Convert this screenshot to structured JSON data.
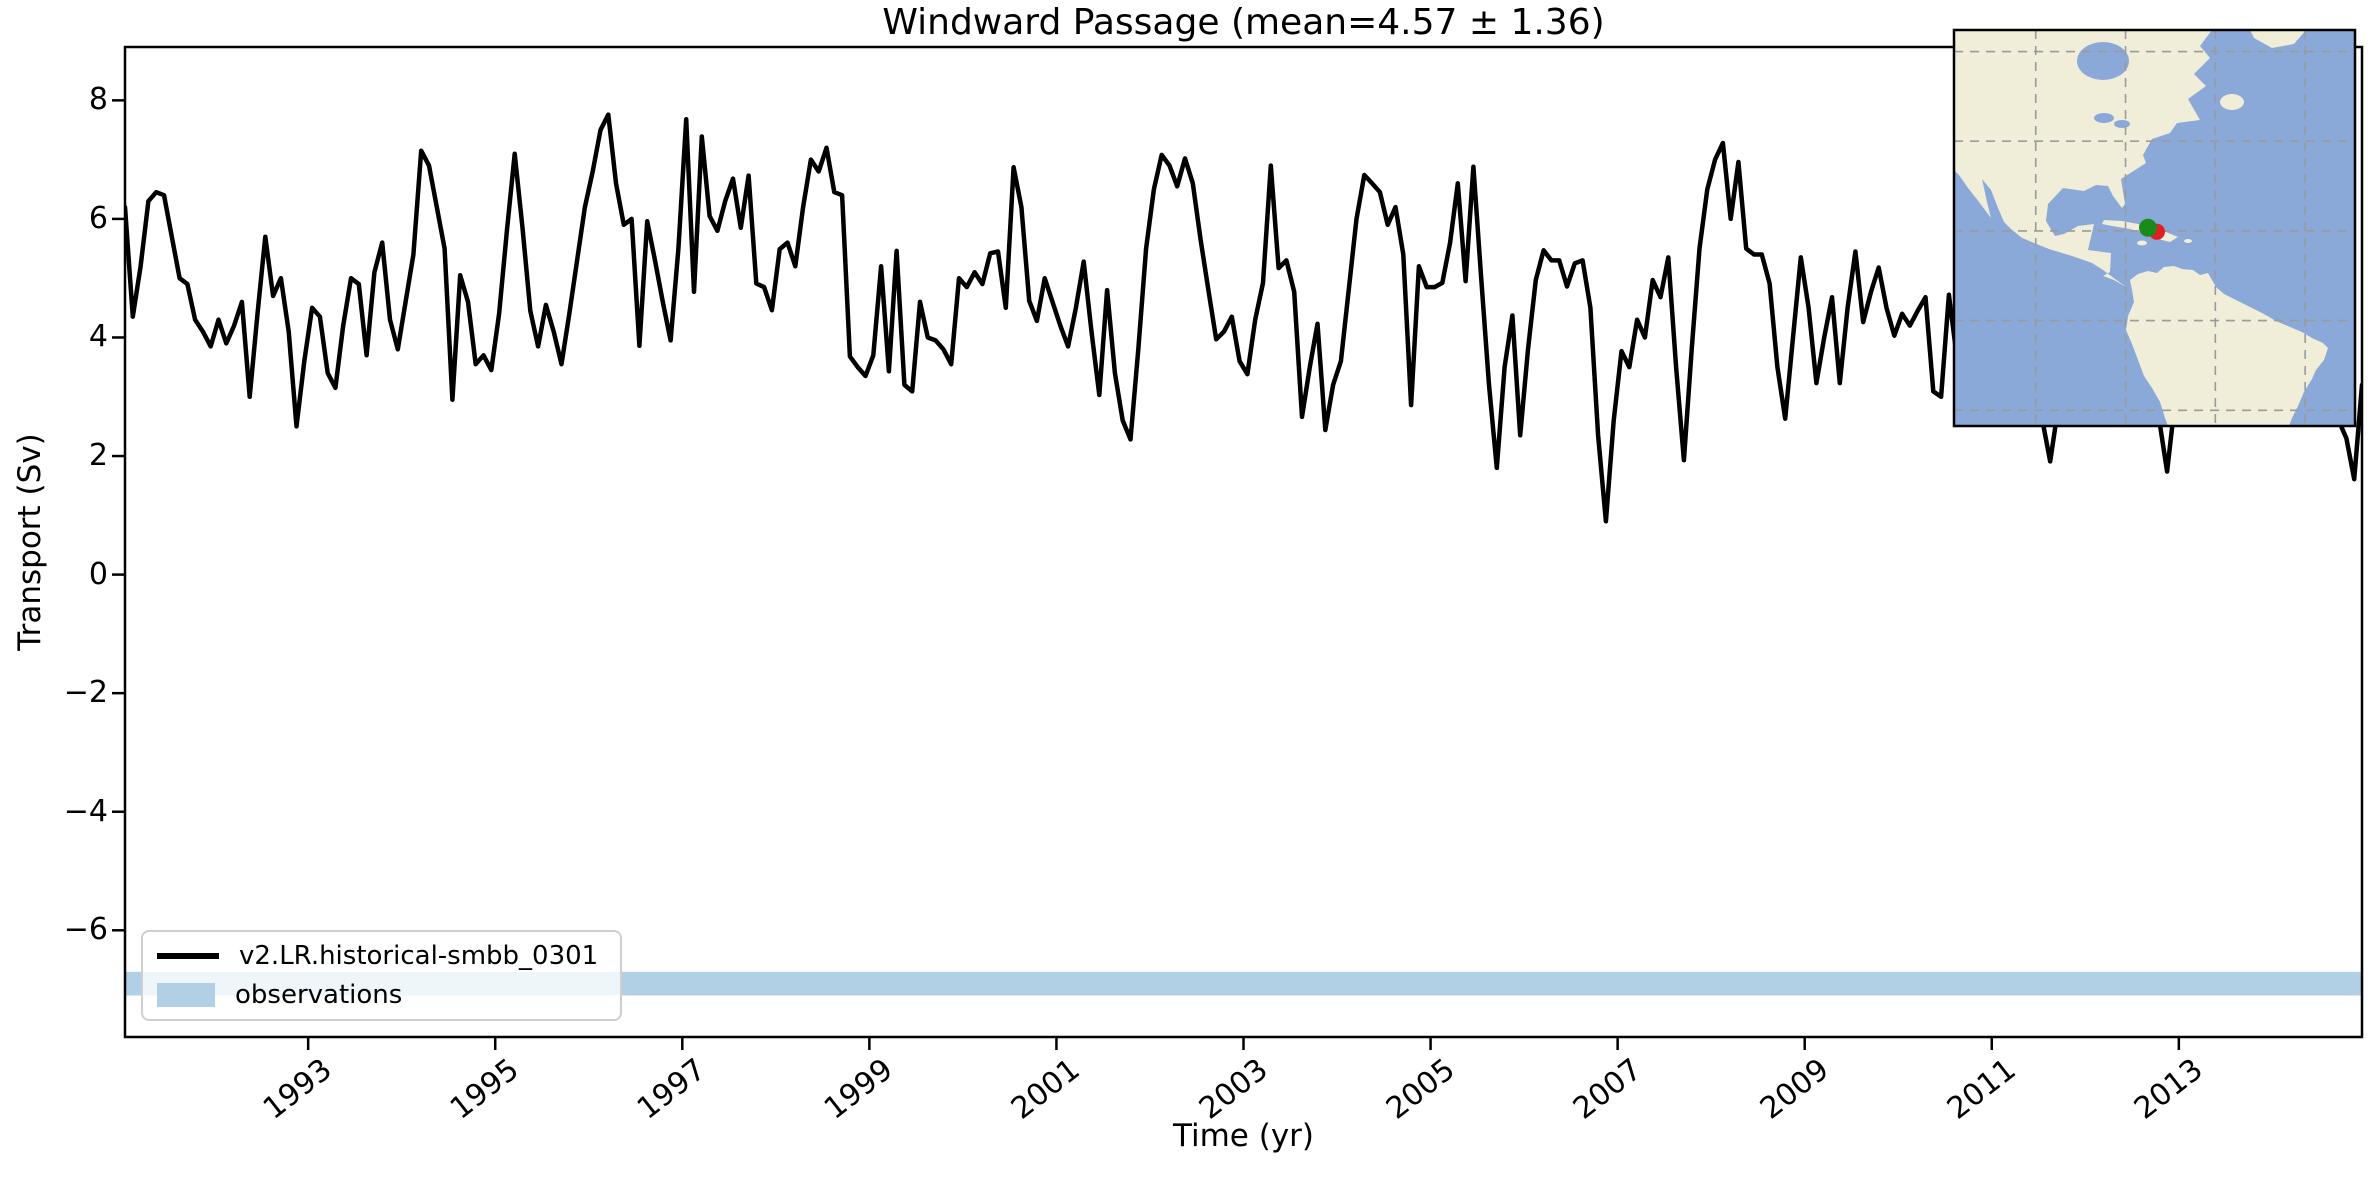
{
  "title": "Windward Passage (mean=4.57 ± 1.36)",
  "axes": {
    "xlabel": "Time (yr)",
    "ylabel": "Transport (Sv)",
    "xticks": [
      1993,
      1995,
      1997,
      1999,
      2001,
      2003,
      2005,
      2007,
      2009,
      2011,
      2013
    ],
    "yticks": [
      8,
      6,
      4,
      2,
      0,
      -2,
      -4,
      -6
    ],
    "ytick_labels": [
      "8",
      "6",
      "4",
      "2",
      "0",
      "−2",
      "−4",
      "−6"
    ]
  },
  "legend": {
    "entries": [
      {
        "label": "v2.LR.historical-smbb_0301",
        "type": "line",
        "color": "#000000"
      },
      {
        "label": "observations",
        "type": "patch",
        "color": "#b1cfe5"
      }
    ]
  },
  "observations_band": {
    "center_sv": -6.9,
    "half_width_sv": 0.2,
    "color": "#b1cfe5"
  },
  "chart_data": {
    "type": "line",
    "title": "Windward Passage (mean=4.57 ± 1.36)",
    "xlabel": "Time (yr)",
    "ylabel": "Transport (Sv)",
    "series_name": "v2.LR.historical-smbb_0301",
    "line_color": "#000000",
    "x_start_year": 1991,
    "x_monthly": true,
    "xlim": [
      1991.0417,
      2014.9583
    ],
    "ylim": [
      -7.8,
      8.9
    ],
    "mean": 4.57,
    "std": 1.36,
    "values": [
      6.2,
      4.35,
      5.2,
      6.3,
      6.45,
      6.4,
      5.7,
      5.0,
      4.9,
      4.3,
      4.1,
      3.85,
      4.3,
      3.9,
      4.2,
      4.6,
      3.0,
      4.4,
      5.7,
      4.7,
      5.0,
      4.1,
      2.5,
      3.6,
      4.5,
      4.35,
      3.4,
      3.15,
      4.2,
      5.0,
      4.9,
      3.7,
      5.1,
      5.6,
      4.3,
      3.8,
      4.6,
      5.4,
      7.15,
      6.9,
      6.2,
      5.5,
      2.95,
      5.05,
      4.6,
      3.55,
      3.7,
      3.45,
      4.4,
      5.8,
      7.1,
      5.85,
      4.45,
      3.85,
      4.55,
      4.1,
      3.55,
      4.4,
      5.3,
      6.2,
      6.8,
      7.5,
      7.76,
      6.6,
      5.9,
      6.0,
      3.86,
      5.96,
      5.3,
      4.6,
      3.95,
      5.5,
      7.68,
      4.77,
      7.39,
      6.05,
      5.8,
      6.3,
      6.68,
      5.85,
      6.73,
      4.91,
      4.85,
      4.46,
      5.49,
      5.6,
      5.2,
      6.2,
      7.0,
      6.8,
      7.2,
      6.45,
      6.4,
      3.68,
      3.5,
      3.35,
      3.7,
      5.2,
      3.43,
      5.46,
      3.2,
      3.09,
      4.6,
      4.0,
      3.95,
      3.8,
      3.55,
      5.0,
      4.85,
      5.1,
      4.9,
      5.42,
      5.45,
      4.5,
      6.87,
      6.2,
      4.62,
      4.28,
      5.0,
      4.6,
      4.2,
      3.85,
      4.5,
      5.28,
      4.1,
      3.03,
      4.8,
      3.4,
      2.6,
      2.28,
      3.8,
      5.5,
      6.5,
      7.08,
      6.9,
      6.55,
      7.02,
      6.6,
      5.65,
      4.8,
      3.97,
      4.1,
      4.35,
      3.6,
      3.38,
      4.3,
      4.92,
      6.9,
      5.17,
      5.3,
      4.77,
      2.66,
      3.5,
      4.23,
      2.44,
      3.2,
      3.6,
      4.8,
      6.0,
      6.74,
      6.6,
      6.45,
      5.9,
      6.2,
      5.4,
      2.86,
      5.2,
      4.85,
      4.85,
      4.92,
      5.6,
      6.6,
      4.95,
      6.88,
      5.0,
      3.2,
      1.8,
      3.5,
      4.37,
      2.35,
      3.8,
      4.97,
      5.47,
      5.3,
      5.3,
      4.86,
      5.25,
      5.3,
      4.5,
      2.35,
      0.9,
      2.6,
      3.77,
      3.5,
      4.3,
      4.0,
      4.97,
      4.68,
      5.35,
      3.5,
      1.93,
      3.8,
      5.5,
      6.5,
      7.0,
      7.28,
      6.0,
      6.96,
      5.5,
      5.4,
      5.4,
      4.91,
      3.5,
      2.63,
      4.0,
      5.35,
      4.5,
      3.23,
      4.0,
      4.68,
      3.23,
      4.5,
      5.45,
      4.26,
      4.77,
      5.18,
      4.5,
      4.03,
      4.4,
      4.2,
      4.45,
      4.68,
      3.09,
      3.0,
      4.72,
      3.68,
      4.2,
      4.8,
      4.4,
      3.9,
      4.5,
      5.0,
      4.3,
      4.8,
      4.2,
      3.5,
      2.6,
      1.91,
      2.8,
      3.9,
      4.4,
      4.8,
      4.4,
      5.1,
      4.6,
      4.0,
      4.5,
      3.8,
      4.2,
      3.5,
      3.0,
      2.6,
      1.74,
      2.9,
      3.8,
      4.5,
      5.0,
      4.4,
      4.9,
      4.3,
      3.8,
      4.6,
      4.1,
      3.5,
      4.2,
      4.7,
      4.3,
      3.9,
      4.5,
      4.0,
      3.6,
      4.2,
      3.3,
      2.9,
      2.6,
      2.3,
      1.61,
      3.2
    ],
    "observations_band_sv": [
      -7.1,
      -6.7
    ],
    "grid": false,
    "legend_position": "lower left"
  },
  "inset_map": {
    "extent_lonlat": {
      "west": -118.2,
      "east": -28.9,
      "north": 64.8,
      "south": -23.5
    },
    "gridline_lons": [
      -100,
      -80,
      -60,
      -40
    ],
    "gridline_lats": [
      60,
      40,
      20,
      0,
      -20
    ],
    "ocean_color": "#8aa8d8",
    "land_color": "#f0edd8",
    "gridline_color": "#9a9a9a",
    "markers": [
      {
        "name": "red-marker",
        "color": "#e02020",
        "lon": -73.0,
        "lat": 19.8
      },
      {
        "name": "green-marker",
        "color": "#1a8a1a",
        "lon": -75.0,
        "lat": 20.7
      }
    ]
  }
}
